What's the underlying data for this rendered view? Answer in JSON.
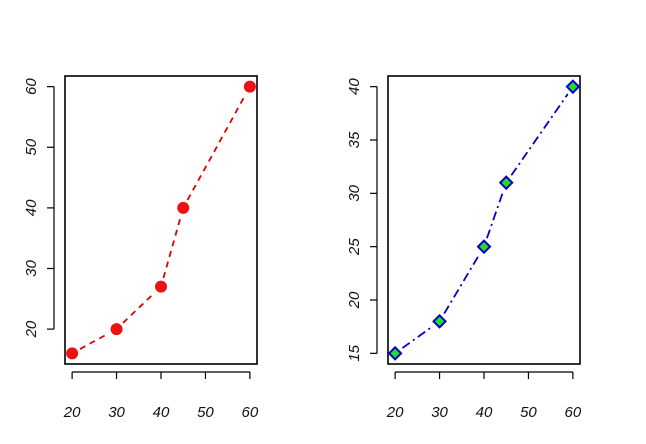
{
  "chart_data": [
    {
      "type": "line",
      "title": "",
      "xlabel": "",
      "ylabel": "",
      "x": [
        20,
        30,
        40,
        45,
        60
      ],
      "y": [
        16,
        20,
        27,
        40,
        60
      ],
      "xlim": [
        18.4,
        61.6
      ],
      "ylim": [
        14.24,
        61.76
      ],
      "x_ticks": [
        20,
        30,
        40,
        50,
        60
      ],
      "y_ticks": [
        20,
        30,
        40,
        50,
        60
      ],
      "line_style": "dashed",
      "line_color": "#dd0000",
      "marker": "circle",
      "marker_color": "#ee1111",
      "grid": false,
      "legend": "none"
    },
    {
      "type": "line",
      "title": "",
      "xlabel": "",
      "ylabel": "",
      "x": [
        20,
        30,
        40,
        45,
        60
      ],
      "y": [
        15,
        18,
        25,
        31,
        40
      ],
      "xlim": [
        18.4,
        61.6
      ],
      "ylim": [
        14.0,
        41.0
      ],
      "x_ticks": [
        20,
        30,
        40,
        50,
        60
      ],
      "y_ticks": [
        15,
        20,
        25,
        30,
        35,
        40
      ],
      "line_style": "dotdash",
      "line_color": "#0000cc",
      "marker": "diamond",
      "marker_color": "#22dd22",
      "marker_edge_color": "#0000cc",
      "grid": false,
      "legend": "none"
    }
  ]
}
